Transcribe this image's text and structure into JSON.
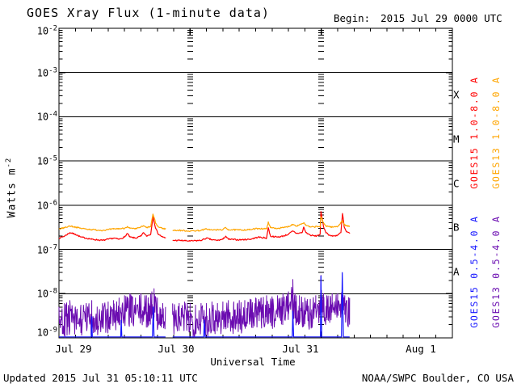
{
  "header": {
    "title": "GOES Xray Flux (1-minute data)",
    "begin_label": "Begin:",
    "begin_value": "2015 Jul 29 0000 UTC"
  },
  "footer": {
    "updated": "Updated 2015 Jul 31 05:10:11 UTC",
    "source": "NOAA/SWPC Boulder, CO USA"
  },
  "axes": {
    "xlabel": "Universal Time",
    "ylabel_base": "Watts m",
    "ylabel_exp": "-2",
    "y_tick_base": "10",
    "y_tick_exponents": [
      -2,
      -3,
      -4,
      -5,
      -6,
      -7,
      -8,
      -9
    ],
    "x_tick_labels": [
      "Jul 29",
      "Jul 30",
      "Jul 31",
      "Aug 1"
    ],
    "flare_classes": [
      {
        "label": "X",
        "decade_exp": -4
      },
      {
        "label": "M",
        "decade_exp": -5
      },
      {
        "label": "C",
        "decade_exp": -6
      },
      {
        "label": "B",
        "decade_exp": -7
      },
      {
        "label": "A",
        "decade_exp": -8
      }
    ]
  },
  "legend": [
    {
      "label": "GOES15 1.0-8.0 A",
      "color": "#ff0000"
    },
    {
      "label": "GOES13 1.0-8.0 A",
      "color": "#ffa500"
    },
    {
      "label": "GOES15 0.5-4.0 A",
      "color": "#1515ff"
    },
    {
      "label": "GOES13 0.5-4.0 A",
      "color": "#6a0bb0"
    }
  ],
  "chart_data": {
    "type": "line",
    "title": "GOES Xray Flux (1-minute data)",
    "xlabel": "Universal Time",
    "ylabel": "Watts m^-2",
    "x_unit": "hours since 2015 Jul 29 0000 UTC",
    "xlim": [
      0,
      72
    ],
    "x_tick_hours": [
      0,
      24,
      48,
      72
    ],
    "x_tick_labels": [
      "Jul 29",
      "Jul 30",
      "Jul 31",
      "Aug 1"
    ],
    "y_scale": "log10",
    "ylim": [
      1e-09,
      0.01
    ],
    "grid": {
      "horizontal_decade_lines": true,
      "vertical_dotted_day_lines_hours": [
        24,
        48
      ]
    },
    "legend_position": "right-vertical",
    "data_gap_hours": [
      19.5,
      20.8
    ],
    "data_end_hour": 53.2,
    "series": [
      {
        "name": "GOES15 1.0-8.0 A",
        "color": "#ff0000",
        "style": "jitter-line",
        "segments": [
          [
            [
              0,
              1.8e-07
            ],
            [
              1,
              2e-07
            ],
            [
              2,
              2.4e-07
            ],
            [
              3,
              2.2e-07
            ],
            [
              4,
              1.9e-07
            ],
            [
              5,
              1.8e-07
            ],
            [
              6,
              1.7e-07
            ],
            [
              7,
              1.65e-07
            ],
            [
              8,
              1.6e-07
            ],
            [
              9,
              1.7e-07
            ],
            [
              10,
              1.8e-07
            ],
            [
              11,
              1.7e-07
            ],
            [
              12,
              1.9e-07
            ],
            [
              12.5,
              2.3e-07
            ],
            [
              13,
              1.9e-07
            ],
            [
              14,
              1.8e-07
            ],
            [
              15,
              2e-07
            ],
            [
              15.5,
              2.4e-07
            ],
            [
              16,
              2e-07
            ],
            [
              16.8,
              2.2e-07
            ],
            [
              17.2,
              5.5e-07
            ],
            [
              17.7,
              3e-07
            ],
            [
              18.2,
              2.2e-07
            ],
            [
              19,
              1.9e-07
            ],
            [
              19.5,
              1.8e-07
            ]
          ],
          [
            [
              20.8,
              1.6e-07
            ],
            [
              22,
              1.6e-07
            ],
            [
              24,
              1.55e-07
            ],
            [
              26,
              1.6e-07
            ],
            [
              27,
              1.8e-07
            ],
            [
              28,
              1.65e-07
            ],
            [
              29,
              1.6e-07
            ],
            [
              30,
              1.7e-07
            ],
            [
              30.5,
              2e-07
            ],
            [
              31,
              1.7e-07
            ],
            [
              33,
              1.65e-07
            ],
            [
              35,
              1.7e-07
            ],
            [
              36.5,
              1.9e-07
            ],
            [
              38,
              1.8e-07
            ],
            [
              38.3,
              3.1e-07
            ],
            [
              38.7,
              2e-07
            ],
            [
              40,
              1.9e-07
            ],
            [
              41,
              2e-07
            ],
            [
              42,
              2.2e-07
            ],
            [
              42.8,
              2.6e-07
            ],
            [
              43.5,
              2.3e-07
            ],
            [
              44.5,
              2.4e-07
            ],
            [
              44.8,
              3.2e-07
            ],
            [
              45.2,
              2.4e-07
            ],
            [
              46,
              2.1e-07
            ],
            [
              47,
              2e-07
            ],
            [
              47.8,
              2.2e-07
            ],
            [
              47.95,
              7.2e-07
            ],
            [
              48.4,
              3.3e-07
            ],
            [
              48.9,
              2.4e-07
            ],
            [
              49.5,
              2.1e-07
            ],
            [
              50,
              2e-07
            ],
            [
              51,
              2.1e-07
            ],
            [
              51.6,
              2.4e-07
            ],
            [
              51.9,
              6.5e-07
            ],
            [
              52.2,
              3.2e-07
            ],
            [
              52.6,
              2.5e-07
            ],
            [
              53.2,
              2.3e-07
            ]
          ]
        ]
      },
      {
        "name": "GOES13 1.0-8.0 A",
        "color": "#ffa500",
        "style": "jitter-line",
        "segments": [
          [
            [
              0,
              2.9e-07
            ],
            [
              1,
              3.1e-07
            ],
            [
              2,
              3.4e-07
            ],
            [
              3,
              3.2e-07
            ],
            [
              4,
              3e-07
            ],
            [
              5,
              2.9e-07
            ],
            [
              6,
              2.8e-07
            ],
            [
              8,
              2.7e-07
            ],
            [
              9,
              2.8e-07
            ],
            [
              10,
              2.9e-07
            ],
            [
              12,
              3e-07
            ],
            [
              12.5,
              3.3e-07
            ],
            [
              13,
              3e-07
            ],
            [
              14,
              2.9e-07
            ],
            [
              15.5,
              3.4e-07
            ],
            [
              16,
              3.1e-07
            ],
            [
              16.8,
              3.3e-07
            ],
            [
              17.2,
              6.3e-07
            ],
            [
              17.7,
              3.9e-07
            ],
            [
              18.2,
              3.2e-07
            ],
            [
              19,
              3e-07
            ],
            [
              19.5,
              2.9e-07
            ]
          ],
          [
            [
              20.8,
              2.7e-07
            ],
            [
              22,
              2.7e-07
            ],
            [
              24,
              2.6e-07
            ],
            [
              26,
              2.7e-07
            ],
            [
              27,
              2.9e-07
            ],
            [
              28,
              2.75e-07
            ],
            [
              30,
              2.8e-07
            ],
            [
              30.5,
              3.1e-07
            ],
            [
              31,
              2.8e-07
            ],
            [
              33,
              2.75e-07
            ],
            [
              35,
              2.8e-07
            ],
            [
              36.5,
              3e-07
            ],
            [
              38,
              2.9e-07
            ],
            [
              38.3,
              4.2e-07
            ],
            [
              38.7,
              3.1e-07
            ],
            [
              40,
              3e-07
            ],
            [
              41,
              3.1e-07
            ],
            [
              42,
              3.3e-07
            ],
            [
              42.8,
              3.7e-07
            ],
            [
              43.5,
              3.4e-07
            ],
            [
              44.8,
              4e-07
            ],
            [
              45.2,
              3.5e-07
            ],
            [
              46,
              3.2e-07
            ],
            [
              47.8,
              3.3e-07
            ],
            [
              47.95,
              5.5e-07
            ],
            [
              48.4,
              3.9e-07
            ],
            [
              48.9,
              3.4e-07
            ],
            [
              50,
              3.2e-07
            ],
            [
              51,
              3.3e-07
            ],
            [
              51.9,
              4.5e-07
            ],
            [
              52.2,
              3.6e-07
            ],
            [
              53.2,
              3.3e-07
            ]
          ]
        ]
      },
      {
        "name": "GOES13 0.5-4.0 A",
        "color": "#6a0bb0",
        "style": "noise-band",
        "segments": [
          [
            [
              0,
              1e-09,
              5e-09
            ],
            [
              1,
              1e-09,
              6e-09
            ],
            [
              2,
              1.1e-09,
              7e-09
            ],
            [
              3,
              1e-09,
              5e-09
            ],
            [
              4,
              1e-09,
              5.5e-09
            ],
            [
              5,
              1.1e-09,
              6e-09
            ],
            [
              6,
              1.2e-09,
              7e-09
            ],
            [
              7,
              1e-09,
              5e-09
            ],
            [
              8,
              1e-09,
              6e-09
            ],
            [
              9,
              1.2e-09,
              6.5e-09
            ],
            [
              10,
              1.3e-09,
              7e-09
            ],
            [
              11,
              1.5e-09,
              8e-09
            ],
            [
              12,
              1.5e-09,
              9e-09
            ],
            [
              13,
              1.8e-09,
              1e-08
            ],
            [
              14,
              1.5e-09,
              8e-09
            ],
            [
              15,
              1.8e-09,
              1e-08
            ],
            [
              16,
              1.5e-09,
              9e-09
            ],
            [
              17,
              2e-09,
              1.1e-08
            ],
            [
              17.4,
              2.5e-09,
              1.3e-08
            ],
            [
              18,
              1.5e-09,
              8e-09
            ],
            [
              19,
              1.2e-09,
              6e-09
            ],
            [
              19.5,
              1.2e-09,
              5e-09
            ]
          ],
          [
            [
              20.8,
              1.2e-09,
              6e-09
            ],
            [
              22,
              1e-09,
              6e-09
            ],
            [
              23,
              1.2e-09,
              6.5e-09
            ],
            [
              24,
              1e-09,
              6e-09
            ],
            [
              25,
              1e-09,
              5.5e-09
            ],
            [
              26,
              1.2e-09,
              6e-09
            ],
            [
              27,
              1e-09,
              6e-09
            ],
            [
              28,
              1.2e-09,
              6.5e-09
            ],
            [
              29,
              1.1e-09,
              6e-09
            ],
            [
              30,
              1.2e-09,
              6.5e-09
            ],
            [
              31,
              1.3e-09,
              7e-09
            ],
            [
              32,
              1.2e-09,
              6.5e-09
            ],
            [
              33,
              1.3e-09,
              7e-09
            ],
            [
              34,
              1.2e-09,
              7e-09
            ],
            [
              35,
              1.4e-09,
              7.5e-09
            ],
            [
              36,
              1.5e-09,
              8e-09
            ],
            [
              37,
              1.5e-09,
              8e-09
            ],
            [
              38,
              1.8e-09,
              9e-09
            ],
            [
              39,
              1.6e-09,
              8.5e-09
            ],
            [
              40,
              1.8e-09,
              9e-09
            ],
            [
              41,
              2e-09,
              1e-08
            ],
            [
              42,
              2e-09,
              1.1e-08
            ],
            [
              42.8,
              2.5e-09,
              2.1e-08
            ],
            [
              43.2,
              2e-09,
              1e-08
            ],
            [
              44,
              1.8e-09,
              9e-09
            ],
            [
              45,
              1.5e-09,
              8e-09
            ],
            [
              46,
              1.5e-09,
              7.5e-09
            ],
            [
              47,
              1.8e-09,
              9e-09
            ],
            [
              47.95,
              2.5e-09,
              2.6e-08
            ],
            [
              48.4,
              2e-09,
              1e-08
            ],
            [
              49,
              1.8e-09,
              9e-09
            ],
            [
              50,
              2e-09,
              1e-08
            ],
            [
              51,
              2e-09,
              1e-08
            ],
            [
              51.85,
              2.5e-09,
              1.6e-08
            ],
            [
              52.3,
              1.8e-09,
              9e-09
            ],
            [
              53.2,
              1.5e-09,
              8e-09
            ]
          ]
        ]
      },
      {
        "name": "GOES15 0.5-4.0 A",
        "color": "#1515ff",
        "style": "plain-line",
        "segments": [
          [
            [
              0,
              1.05e-09
            ],
            [
              5.9,
              1.05e-09
            ],
            [
              6.0,
              3e-09
            ],
            [
              6.1,
              1.05e-09
            ],
            [
              11.3,
              1.05e-09
            ],
            [
              11.4,
              2.5e-09
            ],
            [
              11.5,
              1.05e-09
            ],
            [
              17.1,
              1.05e-09
            ],
            [
              17.25,
              5e-09
            ],
            [
              17.4,
              1.05e-09
            ],
            [
              19.5,
              1.05e-09
            ]
          ],
          [
            [
              20.8,
              1.05e-09
            ],
            [
              26.5,
              1.05e-09
            ],
            [
              26.6,
              2.5e-09
            ],
            [
              26.75,
              1.05e-09
            ],
            [
              34,
              1.05e-09
            ],
            [
              42.7,
              1.05e-09
            ],
            [
              42.8,
              4e-09
            ],
            [
              42.95,
              1.05e-09
            ],
            [
              47.85,
              1.05e-09
            ],
            [
              47.95,
              2.5e-08
            ],
            [
              48.1,
              1.05e-09
            ],
            [
              51.7,
              1.05e-09
            ],
            [
              51.85,
              3e-08
            ],
            [
              52.05,
              1.05e-09
            ],
            [
              53.2,
              1.05e-09
            ]
          ]
        ]
      }
    ]
  }
}
